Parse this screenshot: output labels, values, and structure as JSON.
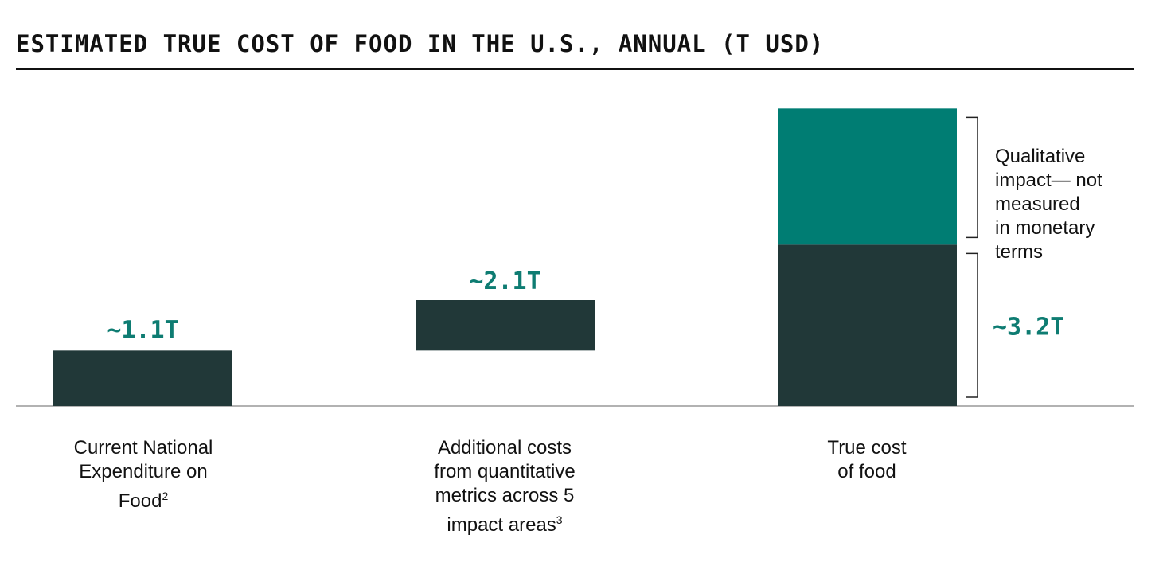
{
  "title": "ESTIMATED TRUE COST OF FOOD IN THE U.S., ANNUAL (T USD)",
  "colors": {
    "dark": "#213838",
    "teal": "#007d73",
    "label_teal": "#0e7c72",
    "text": "#111111",
    "axis": "#999999"
  },
  "chart_data": {
    "type": "bar",
    "title": "ESTIMATED TRUE COST OF FOOD IN THE U.S., ANNUAL (T USD)",
    "categories": [
      {
        "lines": [
          "Current National",
          "Expenditure on",
          "Food"
        ],
        "sup": "2"
      },
      {
        "lines": [
          "Additional costs",
          "from quantitative",
          "metrics across 5",
          "impact areas"
        ],
        "sup": "3"
      },
      {
        "lines": [
          "True cost",
          "of food"
        ],
        "sup": ""
      }
    ],
    "bars": [
      {
        "name": "current",
        "base": 0,
        "value": 1.1,
        "label": "~1.1T",
        "color": "dark"
      },
      {
        "name": "additional",
        "base": 1.1,
        "value": 2.1,
        "label": "~2.1T",
        "color": "dark"
      },
      {
        "name": "true-cost",
        "base": 0,
        "value": 3.2,
        "label": "~3.2T",
        "color": "dark"
      },
      {
        "name": "qualitative",
        "base": 3.2,
        "value": 5.9,
        "label": "",
        "color": "teal"
      }
    ],
    "annotation": [
      "Qualitative",
      "impact— not",
      "measured",
      "in monetary",
      "terms"
    ],
    "ylim": [
      0,
      6.0
    ],
    "grid": false,
    "legend": "none"
  }
}
